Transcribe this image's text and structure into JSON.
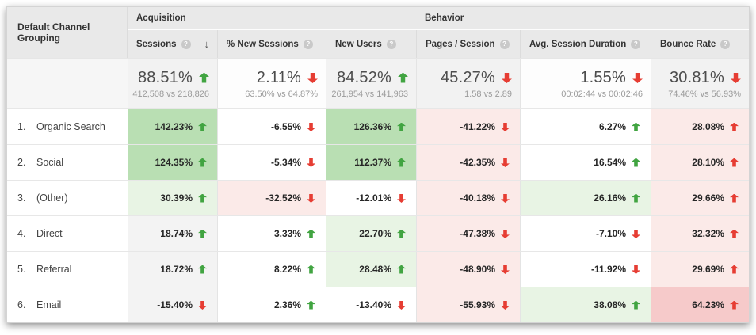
{
  "colors": {
    "positive_arrow": "#41a441",
    "negative_arrow": "#e63d33",
    "strong_green_bg": "#b9dfb3",
    "light_green_bg": "#e8f4e4",
    "light_red_bg": "#fbeae8",
    "strong_red_bg": "#f6caca",
    "sorted_column_bg": "#f3f3f3",
    "header_bg": "#e9e9e9"
  },
  "glyphs": {
    "help": "?",
    "sort_desc": "↓"
  },
  "table": {
    "row_header": "Default Channel Grouping",
    "groups": [
      {
        "label": "Acquisition"
      },
      {
        "label": "Behavior"
      }
    ],
    "columns": [
      {
        "label": "Sessions",
        "sorted": "descending"
      },
      {
        "label": "% New Sessions"
      },
      {
        "label": "New Users"
      },
      {
        "label": "Pages / Session"
      },
      {
        "label": "Avg. Session Duration"
      },
      {
        "label": "Bounce Rate"
      }
    ],
    "summary": [
      {
        "value": "88.51%",
        "arrow": "up-green",
        "compare": "412,508 vs 218,826"
      },
      {
        "value": "2.11%",
        "arrow": "down-red",
        "compare": "63.50% vs 64.87%"
      },
      {
        "value": "84.52%",
        "arrow": "up-green",
        "compare": "261,954 vs 141,963"
      },
      {
        "value": "45.27%",
        "arrow": "down-red",
        "compare": "1.58 vs 2.89"
      },
      {
        "value": "1.55%",
        "arrow": "down-red",
        "compare": "00:02:44 vs 00:02:46"
      },
      {
        "value": "30.81%",
        "arrow": "down-red",
        "compare": "74.46% vs 56.93%"
      }
    ],
    "rows": [
      {
        "index": "1.",
        "channel": "Organic Search",
        "cells": [
          {
            "value": "142.23%",
            "arrow": "up-green",
            "bg": "strong-green"
          },
          {
            "value": "-6.55%",
            "arrow": "down-red",
            "bg": "none"
          },
          {
            "value": "126.36%",
            "arrow": "up-green",
            "bg": "strong-green"
          },
          {
            "value": "-41.22%",
            "arrow": "down-red",
            "bg": "light-red"
          },
          {
            "value": "6.27%",
            "arrow": "up-green",
            "bg": "none"
          },
          {
            "value": "28.08%",
            "arrow": "up-red",
            "bg": "light-red"
          }
        ]
      },
      {
        "index": "2.",
        "channel": "Social",
        "cells": [
          {
            "value": "124.35%",
            "arrow": "up-green",
            "bg": "strong-green"
          },
          {
            "value": "-5.34%",
            "arrow": "down-red",
            "bg": "none"
          },
          {
            "value": "112.37%",
            "arrow": "up-green",
            "bg": "strong-green"
          },
          {
            "value": "-42.35%",
            "arrow": "down-red",
            "bg": "light-red"
          },
          {
            "value": "16.54%",
            "arrow": "up-green",
            "bg": "none"
          },
          {
            "value": "28.10%",
            "arrow": "up-red",
            "bg": "light-red"
          }
        ]
      },
      {
        "index": "3.",
        "channel": "(Other)",
        "cells": [
          {
            "value": "30.39%",
            "arrow": "up-green",
            "bg": "light-green"
          },
          {
            "value": "-32.52%",
            "arrow": "down-red",
            "bg": "light-red"
          },
          {
            "value": "-12.01%",
            "arrow": "down-red",
            "bg": "none"
          },
          {
            "value": "-40.18%",
            "arrow": "down-red",
            "bg": "light-red"
          },
          {
            "value": "26.16%",
            "arrow": "up-green",
            "bg": "light-green"
          },
          {
            "value": "29.66%",
            "arrow": "up-red",
            "bg": "light-red"
          }
        ]
      },
      {
        "index": "4.",
        "channel": "Direct",
        "cells": [
          {
            "value": "18.74%",
            "arrow": "up-green",
            "bg": "sorted-gray"
          },
          {
            "value": "3.33%",
            "arrow": "up-green",
            "bg": "none"
          },
          {
            "value": "22.70%",
            "arrow": "up-green",
            "bg": "light-green"
          },
          {
            "value": "-47.38%",
            "arrow": "down-red",
            "bg": "light-red"
          },
          {
            "value": "-7.10%",
            "arrow": "down-red",
            "bg": "none"
          },
          {
            "value": "32.32%",
            "arrow": "up-red",
            "bg": "light-red"
          }
        ]
      },
      {
        "index": "5.",
        "channel": "Referral",
        "cells": [
          {
            "value": "18.72%",
            "arrow": "up-green",
            "bg": "sorted-gray"
          },
          {
            "value": "8.22%",
            "arrow": "up-green",
            "bg": "none"
          },
          {
            "value": "28.48%",
            "arrow": "up-green",
            "bg": "light-green"
          },
          {
            "value": "-48.90%",
            "arrow": "down-red",
            "bg": "light-red"
          },
          {
            "value": "-11.92%",
            "arrow": "down-red",
            "bg": "none"
          },
          {
            "value": "29.69%",
            "arrow": "up-red",
            "bg": "light-red"
          }
        ]
      },
      {
        "index": "6.",
        "channel": "Email",
        "cells": [
          {
            "value": "-15.40%",
            "arrow": "down-red",
            "bg": "sorted-gray"
          },
          {
            "value": "2.36%",
            "arrow": "up-green",
            "bg": "none"
          },
          {
            "value": "-13.40%",
            "arrow": "down-red",
            "bg": "none"
          },
          {
            "value": "-55.93%",
            "arrow": "down-red",
            "bg": "light-red"
          },
          {
            "value": "38.08%",
            "arrow": "up-green",
            "bg": "light-green"
          },
          {
            "value": "64.23%",
            "arrow": "up-red",
            "bg": "strong-red"
          }
        ]
      }
    ]
  }
}
